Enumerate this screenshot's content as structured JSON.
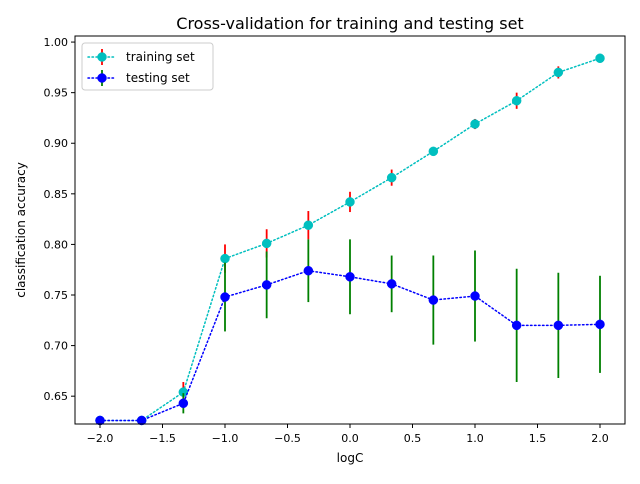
{
  "chart_data": {
    "type": "line",
    "title": "Cross-validation for training and testing set",
    "xlabel": "logC",
    "ylabel": "classification accuracy",
    "xlim": [
      -2.2,
      2.2
    ],
    "ylim": [
      0.6225,
      1.006
    ],
    "xticks": [
      -2.0,
      -1.5,
      -1.0,
      -0.5,
      0.0,
      0.5,
      1.0,
      1.5,
      2.0
    ],
    "xtick_labels": [
      "−2.0",
      "−1.5",
      "−1.0",
      "−0.5",
      "0.0",
      "0.5",
      "1.0",
      "1.5",
      "2.0"
    ],
    "yticks": [
      0.65,
      0.7,
      0.75,
      0.8,
      0.85,
      0.9,
      0.95,
      1.0
    ],
    "ytick_labels": [
      "0.65",
      "0.70",
      "0.75",
      "0.80",
      "0.85",
      "0.90",
      "0.95",
      "1.00"
    ],
    "grid": false,
    "legend_position": "top-left",
    "x": [
      -2.0,
      -1.6667,
      -1.3333,
      -1.0,
      -0.6667,
      -0.3333,
      0.0,
      0.3333,
      0.6667,
      1.0,
      1.3333,
      1.6667,
      2.0
    ],
    "series": [
      {
        "name": "training set",
        "values": [
          0.626,
          0.626,
          0.654,
          0.786,
          0.801,
          0.819,
          0.842,
          0.866,
          0.892,
          0.919,
          0.942,
          0.97,
          0.984
        ],
        "errors": [
          0.0,
          0.0,
          0.01,
          0.014,
          0.014,
          0.014,
          0.01,
          0.008,
          0.004,
          0.005,
          0.008,
          0.006,
          0.003
        ],
        "color": "#00bfbf",
        "error_color": "#ff0000"
      },
      {
        "name": "testing set",
        "values": [
          0.626,
          0.626,
          0.643,
          0.748,
          0.76,
          0.774,
          0.768,
          0.761,
          0.745,
          0.749,
          0.72,
          0.72,
          0.721
        ],
        "errors": [
          0.0,
          0.0,
          0.01,
          0.034,
          0.033,
          0.031,
          0.037,
          0.028,
          0.044,
          0.045,
          0.056,
          0.052,
          0.048
        ],
        "color": "#0000ff",
        "error_color": "#008000"
      }
    ]
  }
}
